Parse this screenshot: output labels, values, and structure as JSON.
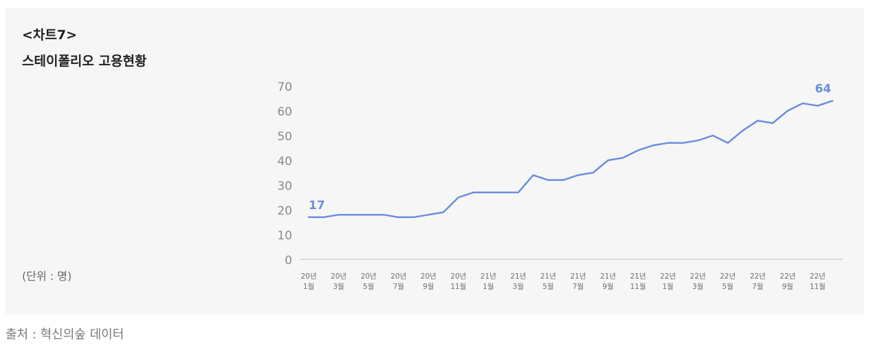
{
  "header": {
    "label": "<차트7>",
    "title": "스테이폴리오 고용현황"
  },
  "unit": "(단위 : 명)",
  "source": "출처 : 혁신의숲 데이터",
  "chart_data": {
    "type": "line",
    "ylim": [
      0,
      70
    ],
    "y_ticks": [
      "0",
      "10",
      "20",
      "30",
      "40",
      "50",
      "60",
      "70"
    ],
    "x_tick_labels": [
      {
        "year": "20년",
        "month": "1월"
      },
      {
        "year": "20년",
        "month": "3월"
      },
      {
        "year": "20년",
        "month": "5월"
      },
      {
        "year": "20년",
        "month": "7월"
      },
      {
        "year": "20년",
        "month": "9월"
      },
      {
        "year": "20년",
        "month": "11월"
      },
      {
        "year": "21년",
        "month": "1월"
      },
      {
        "year": "21년",
        "month": "3월"
      },
      {
        "year": "21년",
        "month": "5월"
      },
      {
        "year": "21년",
        "month": "7월"
      },
      {
        "year": "21년",
        "month": "9월"
      },
      {
        "year": "21년",
        "month": "11월"
      },
      {
        "year": "22년",
        "month": "1월"
      },
      {
        "year": "22년",
        "month": "3월"
      },
      {
        "year": "22년",
        "month": "5월"
      },
      {
        "year": "22년",
        "month": "7월"
      },
      {
        "year": "22년",
        "month": "9월"
      },
      {
        "year": "22년",
        "month": "11월"
      }
    ],
    "values": [
      17,
      17,
      18,
      18,
      18,
      18,
      17,
      17,
      18,
      19,
      25,
      27,
      27,
      27,
      27,
      34,
      32,
      32,
      34,
      35,
      40,
      41,
      44,
      46,
      47,
      47,
      48,
      50,
      47,
      52,
      56,
      55,
      60,
      63,
      62,
      64
    ],
    "data_labels": [
      {
        "index": 0,
        "text": "17"
      },
      {
        "index": 35,
        "text": "64"
      }
    ],
    "line_color": "#6a8fdb",
    "grid": false
  }
}
